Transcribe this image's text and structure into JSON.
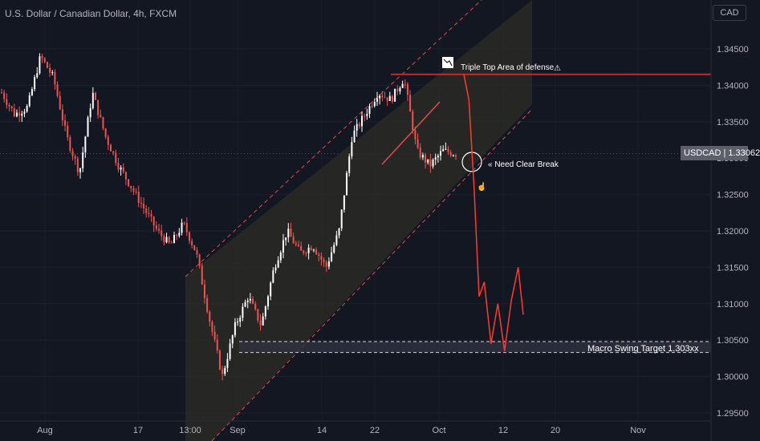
{
  "header": {
    "title": "U.S. Dollar / Canadian Dollar, 4h, FXCM",
    "currency_badge": "CAD"
  },
  "price_tag": {
    "symbol": "USDCAD",
    "value": "1.33062"
  },
  "colors": {
    "background": "#131722",
    "candle_up": "#ffffff",
    "candle_down": "#ef5350",
    "channel_fill": "#2a2a24",
    "channel_border": "#e24a4a",
    "resistance_line": "#c62828",
    "projection_line": "#ff3b30"
  },
  "chart_data": {
    "type": "candlestick",
    "title": "U.S. Dollar / Canadian Dollar, 4h, FXCM",
    "y_axis": {
      "ticks": [
        "1.34500",
        "1.34000",
        "1.33500",
        "1.33000",
        "1.32500",
        "1.32000",
        "1.31500",
        "1.31000",
        "1.30500",
        "1.30000",
        "1.29500"
      ],
      "range": [
        1.2945,
        1.3505
      ]
    },
    "x_axis": {
      "ticks": [
        "Aug",
        "17",
        "13:00",
        "Sep",
        "14",
        "22",
        "Oct",
        "12",
        "20",
        "Nov"
      ]
    },
    "price_path": [
      [
        0,
        1.339
      ],
      [
        0.02,
        1.336
      ],
      [
        0.04,
        1.337
      ],
      [
        0.06,
        1.344
      ],
      [
        0.08,
        1.341
      ],
      [
        0.1,
        1.333
      ],
      [
        0.12,
        1.328
      ],
      [
        0.14,
        1.339
      ],
      [
        0.16,
        1.333
      ],
      [
        0.18,
        1.329
      ],
      [
        0.2,
        1.326
      ],
      [
        0.22,
        1.323
      ],
      [
        0.24,
        1.32
      ],
      [
        0.26,
        1.318
      ],
      [
        0.28,
        1.321
      ],
      [
        0.3,
        1.317
      ],
      [
        0.32,
        1.308
      ],
      [
        0.34,
        1.3
      ],
      [
        0.36,
        1.307
      ],
      [
        0.38,
        1.311
      ],
      [
        0.4,
        1.307
      ],
      [
        0.42,
        1.315
      ],
      [
        0.44,
        1.32
      ],
      [
        0.46,
        1.317
      ],
      [
        0.48,
        1.318
      ],
      [
        0.5,
        1.315
      ],
      [
        0.52,
        1.32
      ],
      [
        0.54,
        1.333
      ],
      [
        0.56,
        1.336
      ],
      [
        0.58,
        1.339
      ],
      [
        0.6,
        1.338
      ],
      [
        0.62,
        1.341
      ],
      [
        0.64,
        1.331
      ],
      [
        0.66,
        1.329
      ],
      [
        0.68,
        1.331
      ],
      [
        0.7,
        1.3306
      ]
    ],
    "channel": {
      "label": "ascending channel"
    },
    "annotations": [
      {
        "text": "Triple Top Area of defense",
        "price": 1.3415
      },
      {
        "text": "Need Clear Break",
        "price": 1.3294
      },
      {
        "text": "Macro Swing Target 1.303xx",
        "price_top": 1.3048,
        "price_bottom": 1.3033
      }
    ],
    "projection": [
      [
        0,
        1.3415
      ],
      [
        0.03,
        1.338
      ],
      [
        0.06,
        1.326
      ],
      [
        0.09,
        1.311
      ],
      [
        0.12,
        1.313
      ],
      [
        0.16,
        1.3045
      ],
      [
        0.2,
        1.31
      ],
      [
        0.24,
        1.3035
      ],
      [
        0.28,
        1.3105
      ],
      [
        0.32,
        1.315
      ],
      [
        0.35,
        1.3085
      ]
    ]
  }
}
